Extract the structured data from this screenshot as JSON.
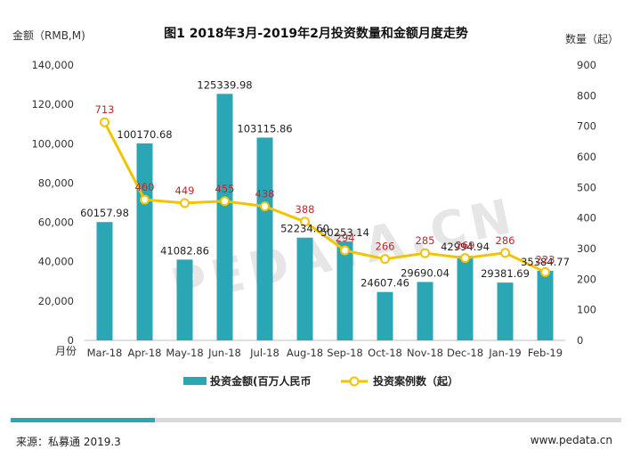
{
  "chart_data": {
    "type": "bar",
    "title": "图1 2018年3月-2019年2月投资数量和金额月度走势",
    "ylabel_left": "金额（RMB,M)",
    "ylabel_right": "数量（起）",
    "xlabel": "月份",
    "categories": [
      "Mar-18",
      "Apr-18",
      "May-18",
      "Jun-18",
      "Jul-18",
      "Aug-18",
      "Sep-18",
      "Oct-18",
      "Nov-18",
      "Dec-18",
      "Jan-19",
      "Feb-19"
    ],
    "ylim_left": [
      0,
      140000
    ],
    "yticks_left": [
      "0",
      "20,000",
      "40,000",
      "60,000",
      "80,000",
      "100,000",
      "120,000",
      "140,000"
    ],
    "ylim_right": [
      0,
      900
    ],
    "yticks_right": [
      "0",
      "100",
      "200",
      "300",
      "400",
      "500",
      "600",
      "700",
      "800",
      "900"
    ],
    "series": [
      {
        "name": "投资金额(百万人民币",
        "type": "bar",
        "axis": "left",
        "color": "#2ba6b5",
        "values": [
          60157.98,
          100170.68,
          41082.86,
          125339.98,
          103115.86,
          52234.6,
          50253.14,
          24607.46,
          29690.04,
          42994.94,
          29381.69,
          35384.77
        ],
        "labels": [
          "60157.98",
          "100170.68",
          "41082.86",
          "125339.98",
          "103115.86",
          "52234.60",
          "50253.14",
          "24607.46",
          "29690.04",
          "42994.94",
          "29381.69",
          "35384.77"
        ]
      },
      {
        "name": "投资案例数（起）",
        "type": "line",
        "axis": "right",
        "color": "#f2c300",
        "label_color": "#c0272d",
        "values": [
          713,
          460,
          449,
          455,
          438,
          388,
          294,
          266,
          285,
          269,
          286,
          223
        ],
        "labels": [
          "713",
          "460",
          "449",
          "455",
          "438",
          "388",
          "294",
          "266",
          "285",
          "269",
          "286",
          "223"
        ]
      }
    ],
    "grid": false,
    "legend_position": "bottom"
  },
  "watermark": "PEDATA.CN",
  "footer": {
    "source": "来源：私募通 2019.3",
    "site": "www.pedata.cn"
  }
}
